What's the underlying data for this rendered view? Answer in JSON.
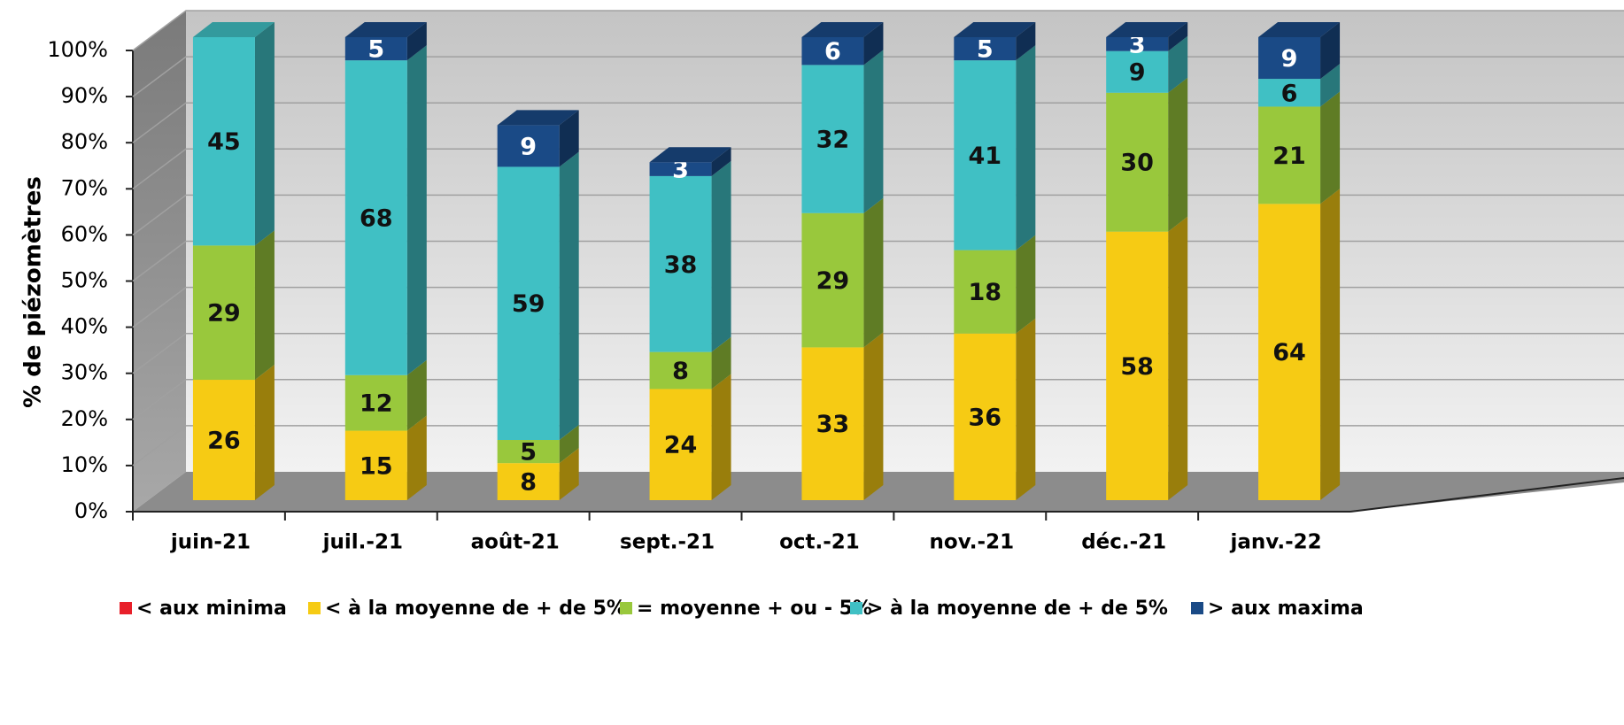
{
  "chart_data": {
    "type": "bar3d_stacked",
    "y_label": "% de piézomètres",
    "categories": [
      "juin-21",
      "juil.-21",
      "août-21",
      "sept.-21",
      "oct.-21",
      "nov.-21",
      "déc.-21",
      "janv.-22"
    ],
    "series": [
      {
        "name": "< aux minima",
        "color": "#e8202a",
        "values": [
          0,
          0,
          0,
          0,
          0,
          0,
          0,
          0
        ]
      },
      {
        "name": "< à la moyenne de + de 5%",
        "color": "#f6cb14",
        "values": [
          26,
          15,
          8,
          24,
          33,
          36,
          58,
          64
        ]
      },
      {
        "name": "= moyenne + ou - 5%",
        "color": "#99c83c",
        "values": [
          29,
          12,
          5,
          8,
          29,
          18,
          30,
          21
        ]
      },
      {
        "name": "> à la moyenne de + de 5%",
        "color": "#40c0c4",
        "values": [
          45,
          68,
          59,
          38,
          32,
          41,
          9,
          6
        ]
      },
      {
        "name": "> aux maxima",
        "color": "#1a4a86",
        "values": [
          0,
          5,
          9,
          3,
          6,
          5,
          3,
          9
        ]
      }
    ],
    "ylim": [
      0,
      100
    ],
    "yticks": [
      {
        "value": 0,
        "label": "0%"
      },
      {
        "value": 10,
        "label": "10%"
      },
      {
        "value": 20,
        "label": "20%"
      },
      {
        "value": 30,
        "label": "30%"
      },
      {
        "value": 40,
        "label": "40%"
      },
      {
        "value": 50,
        "label": "50%"
      },
      {
        "value": 60,
        "label": "60%"
      },
      {
        "value": 70,
        "label": "70%"
      },
      {
        "value": 80,
        "label": "80%"
      },
      {
        "value": 90,
        "label": "90%"
      },
      {
        "value": 100,
        "label": "100%"
      }
    ],
    "grid": true
  }
}
